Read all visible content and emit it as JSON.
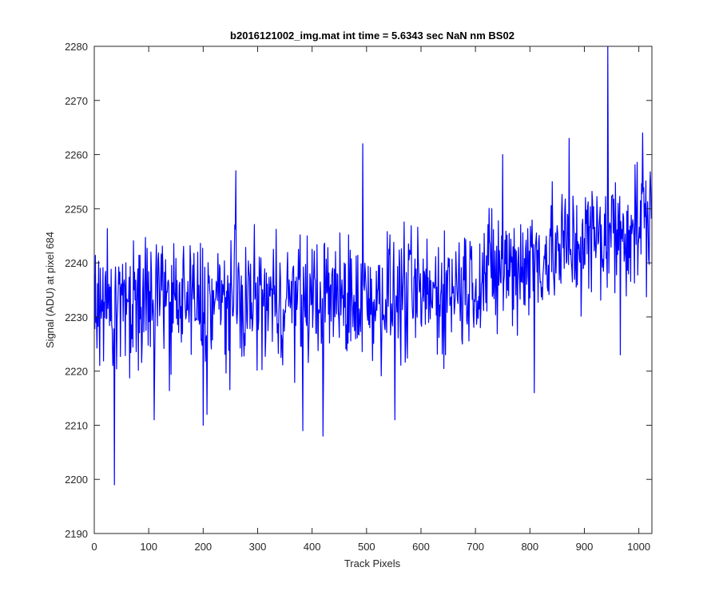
{
  "chart_data": {
    "type": "line",
    "title": "b2016121002_img.mat int time = 5.6343 sec  NaN nm BS02",
    "xlabel": "Track Pixels",
    "ylabel": "Signal (ADU) at pixel 684",
    "xlim": [
      0,
      1024
    ],
    "ylim": [
      2190,
      2280
    ],
    "xticks": [
      0,
      100,
      200,
      300,
      400,
      500,
      600,
      700,
      800,
      900,
      1000
    ],
    "yticks": [
      2190,
      2200,
      2210,
      2220,
      2230,
      2240,
      2250,
      2260,
      2270,
      2280
    ],
    "grid": false,
    "legend": "none",
    "line_color": "#0000ff",
    "points": 1024,
    "anchors": [
      {
        "x": 37,
        "y": 2199
      },
      {
        "x": 110,
        "y": 2211
      },
      {
        "x": 200,
        "y": 2210
      },
      {
        "x": 207,
        "y": 2212
      },
      {
        "x": 260,
        "y": 2257
      },
      {
        "x": 383,
        "y": 2209
      },
      {
        "x": 420,
        "y": 2208
      },
      {
        "x": 493,
        "y": 2262
      },
      {
        "x": 552,
        "y": 2211
      },
      {
        "x": 750,
        "y": 2260
      },
      {
        "x": 808,
        "y": 2216
      },
      {
        "x": 872,
        "y": 2263
      },
      {
        "x": 943,
        "y": 2280
      },
      {
        "x": 966,
        "y": 2223
      },
      {
        "x": 1007,
        "y": 2264
      }
    ],
    "trend": {
      "mean_start": 2232,
      "mean_mid": 2234,
      "mean_end": 2248,
      "spread": 6
    }
  }
}
